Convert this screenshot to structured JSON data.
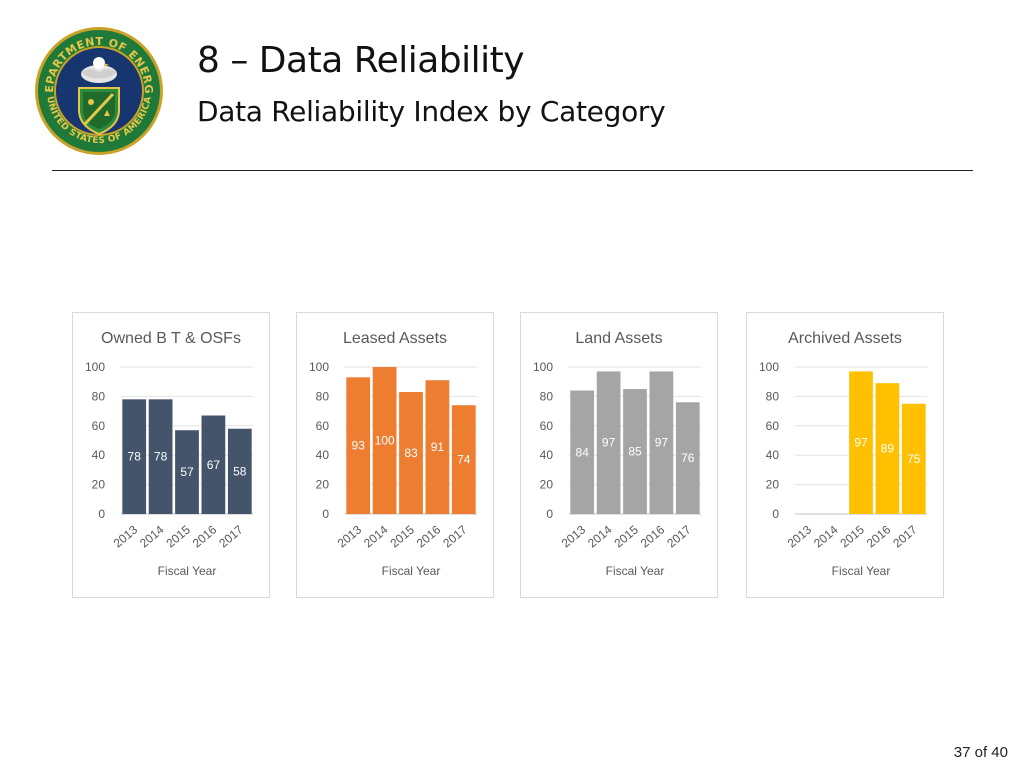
{
  "header": {
    "title": "8 – Data Reliability",
    "subtitle": "Data Reliability Index by Category"
  },
  "seal": {
    "top_text": "DEPARTMENT OF ENERGY",
    "bottom_text": "UNITED STATES OF AMERICA"
  },
  "footer": {
    "page": "37 of 40"
  },
  "chart_data": [
    {
      "type": "bar",
      "title": "Owned B T & OSFs",
      "xlabel": "Fiscal Year",
      "ylabel": "",
      "ylim": [
        0,
        100
      ],
      "yticks": [
        0,
        20,
        40,
        60,
        80,
        100
      ],
      "categories": [
        "2013",
        "2014",
        "2015",
        "2016",
        "2017"
      ],
      "values": [
        78,
        78,
        57,
        67,
        58
      ],
      "color": "#44546a"
    },
    {
      "type": "bar",
      "title": "Leased Assets",
      "xlabel": "Fiscal Year",
      "ylabel": "",
      "ylim": [
        0,
        100
      ],
      "yticks": [
        0,
        20,
        40,
        60,
        80,
        100
      ],
      "categories": [
        "2013",
        "2014",
        "2015",
        "2016",
        "2017"
      ],
      "values": [
        93,
        100,
        83,
        91,
        74
      ],
      "color": "#ed7d31"
    },
    {
      "type": "bar",
      "title": "Land Assets",
      "xlabel": "Fiscal Year",
      "ylabel": "",
      "ylim": [
        0,
        100
      ],
      "yticks": [
        0,
        20,
        40,
        60,
        80,
        100
      ],
      "categories": [
        "2013",
        "2014",
        "2015",
        "2016",
        "2017"
      ],
      "values": [
        84,
        97,
        85,
        97,
        76
      ],
      "color": "#a5a5a5"
    },
    {
      "type": "bar",
      "title": "Archived Assets",
      "xlabel": "Fiscal Year",
      "ylabel": "",
      "ylim": [
        0,
        100
      ],
      "yticks": [
        0,
        20,
        40,
        60,
        80,
        100
      ],
      "categories": [
        "2013",
        "2014",
        "2015",
        "2016",
        "2017"
      ],
      "values": [
        null,
        null,
        97,
        89,
        75
      ],
      "color": "#ffc000"
    }
  ]
}
